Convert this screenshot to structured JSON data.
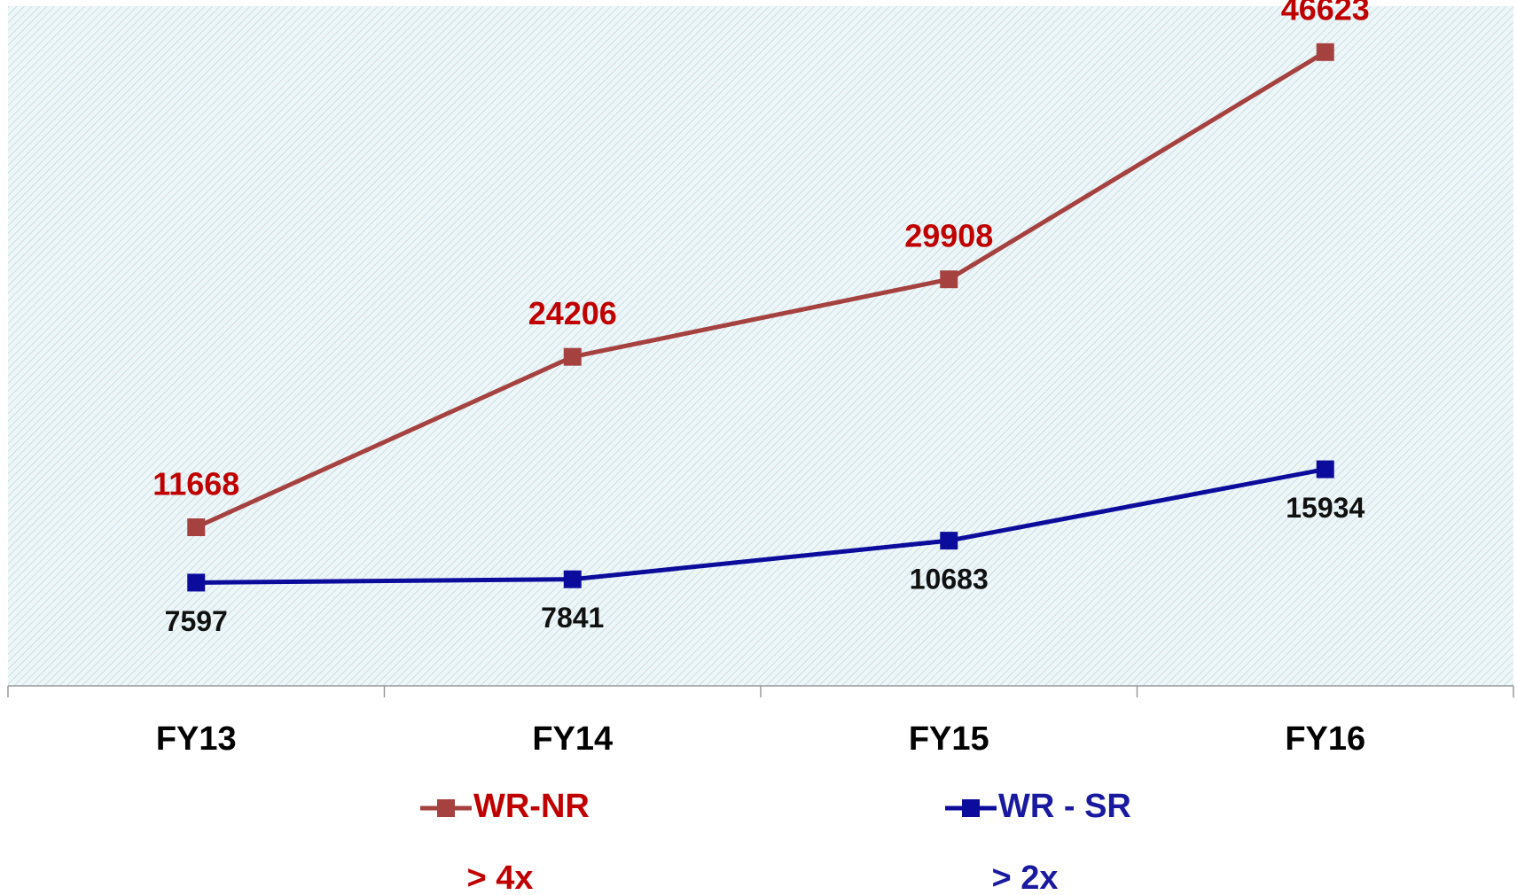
{
  "chart_data": {
    "type": "line",
    "categories": [
      "FY13",
      "FY14",
      "FY15",
      "FY16"
    ],
    "series": [
      {
        "name": "WR-NR",
        "color": "#a5413f",
        "label_color": "#c00000",
        "legend_color": "#c00000",
        "label_position": "above",
        "values": [
          11668,
          24206,
          29908,
          46623
        ]
      },
      {
        "name": "WR - SR",
        "color": "#0c0c9c",
        "label_color": "#111111",
        "legend_color": "#1a1aa0",
        "label_position": "below",
        "values": [
          7597,
          7841,
          10683,
          15934
        ]
      }
    ],
    "annotations": [
      "> 4x",
      "> 2x"
    ],
    "ylim": [
      0,
      50000
    ],
    "legend": "bottom"
  }
}
